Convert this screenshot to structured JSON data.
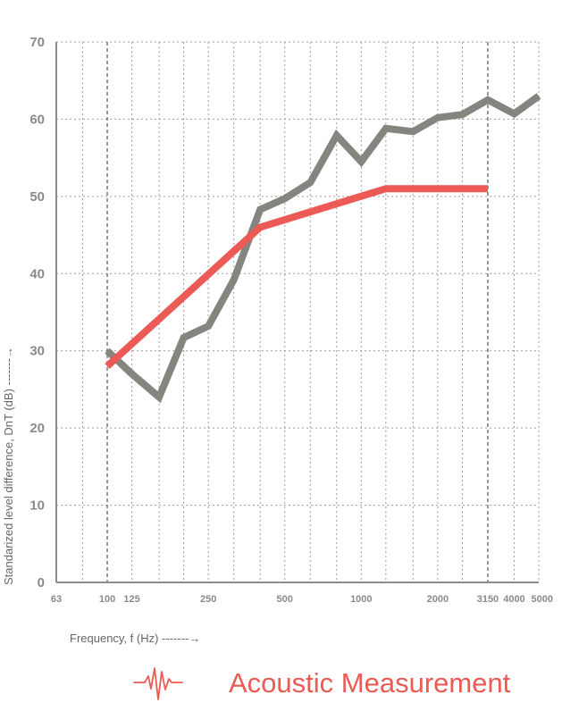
{
  "chart_data": {
    "type": "line",
    "xscale": "log",
    "xlim": [
      63,
      5000
    ],
    "ylim": [
      0,
      70
    ],
    "yticks": [
      0,
      10,
      20,
      30,
      40,
      50,
      60,
      70
    ],
    "xticks": [
      63,
      100,
      125,
      250,
      500,
      1000,
      2000,
      3150,
      4000,
      5000
    ],
    "xtick_labels": [
      "63",
      "100",
      "125",
      "250",
      "500",
      "1000",
      "2000",
      "3150",
      "4000",
      "5000"
    ],
    "xlabel": "Frequency, f (Hz) -------→",
    "ylabel": "Standarized level difference, DnT (dB) -------→",
    "grid": true,
    "series": [
      {
        "key": "measured",
        "color": "#858580",
        "x": [
          100,
          125,
          160,
          200,
          250,
          315,
          400,
          500,
          630,
          800,
          1000,
          1250,
          1600,
          2000,
          2500,
          3150,
          4000,
          5000
        ],
        "y": [
          30,
          27,
          24,
          31.7,
          33.2,
          39.2,
          48.3,
          49.7,
          51.8,
          57.9,
          54.5,
          58.8,
          58.4,
          60.2,
          60.6,
          62.5,
          60.7,
          63
        ]
      },
      {
        "key": "reference",
        "color": "#ec5a55",
        "x": [
          100,
          400,
          1250,
          3150
        ],
        "y": [
          28,
          46,
          51,
          51
        ]
      }
    ]
  },
  "legend": {
    "label": "Acoustic Measurement",
    "icon": "waveform-icon",
    "color": "#ec5a55"
  },
  "colors": {
    "grid": "#9c9c9c",
    "axis": "#8c8c8c",
    "tick_text": "#8a8a8a",
    "axis_label_text": "#666666"
  }
}
